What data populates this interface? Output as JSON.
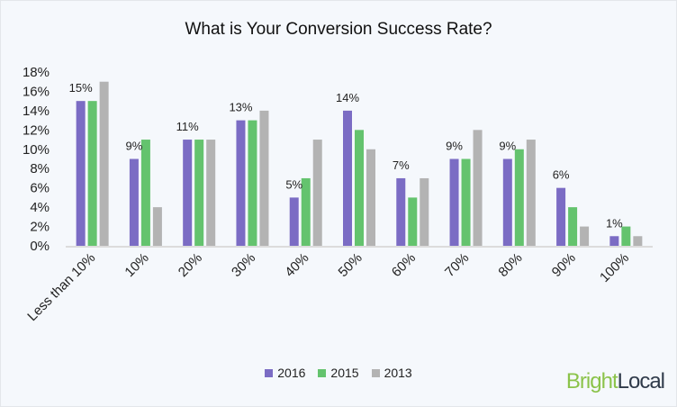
{
  "chart_data": {
    "type": "bar",
    "title": "What is Your Conversion Success Rate?",
    "categories": [
      "Less than 10%",
      "10%",
      "20%",
      "30%",
      "40%",
      "50%",
      "60%",
      "70%",
      "80%",
      "90%",
      "100%"
    ],
    "series": [
      {
        "name": "2016",
        "color": "#7b6cc4",
        "values": [
          15,
          9,
          11,
          13,
          5,
          14,
          7,
          9,
          9,
          6,
          1
        ]
      },
      {
        "name": "2015",
        "color": "#64c36e",
        "values": [
          15,
          11,
          11,
          13,
          7,
          12,
          5,
          9,
          10,
          4,
          2
        ]
      },
      {
        "name": "2013",
        "color": "#b3b3b3",
        "values": [
          17,
          4,
          11,
          14,
          11,
          10,
          7,
          12,
          11,
          2,
          1
        ]
      }
    ],
    "data_labels": [
      "15%",
      "9%",
      "11%",
      "13%",
      "5%",
      "14%",
      "7%",
      "9%",
      "9%",
      "6%",
      "1%"
    ],
    "ylim": [
      0,
      18
    ],
    "yticks": [
      "0%",
      "2%",
      "4%",
      "6%",
      "8%",
      "10%",
      "12%",
      "14%",
      "16%",
      "18%"
    ],
    "grid": false,
    "legend": "bottom"
  },
  "logo": {
    "part1": "Bright",
    "part2": "Local"
  }
}
